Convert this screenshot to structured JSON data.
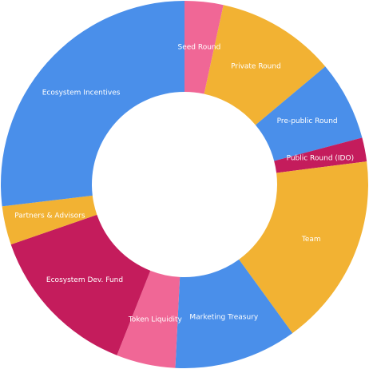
{
  "chart_data": {
    "type": "pie",
    "donut": true,
    "start": "top",
    "direction": "clockwise",
    "title": "",
    "legend": "none",
    "slices": [
      {
        "label": "Seed Round",
        "value": 3.4,
        "color": "#F06796"
      },
      {
        "label": "Private Round",
        "value": 10.5,
        "color": "#F2B233"
      },
      {
        "label": "Pre-public Round",
        "value": 7.0,
        "color": "#4A8FEA"
      },
      {
        "label": "Public Round (IDO)",
        "value": 2.1,
        "color": "#C41C5C"
      },
      {
        "label": "Team",
        "value": 17.0,
        "color": "#F2B233"
      },
      {
        "label": "Marketing Treasury",
        "value": 10.8,
        "color": "#4A8FEA"
      },
      {
        "label": "Token Liquidity",
        "value": 5.2,
        "color": "#F06796"
      },
      {
        "label": "Ecosystem Dev. Fund",
        "value": 13.7,
        "color": "#C41C5C"
      },
      {
        "label": "Partners & Advisors",
        "value": 3.4,
        "color": "#F2B233"
      },
      {
        "label": "Ecosystem Incentives",
        "value": 26.9,
        "color": "#4A8FEA"
      }
    ]
  }
}
